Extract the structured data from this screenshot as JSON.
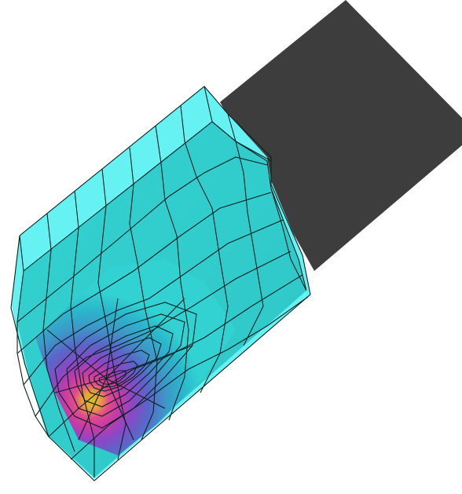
{
  "figure": {
    "background_color": "#ffffff",
    "rigid_block_color": "#3d3d3d",
    "face_colors": {
      "top": "#66f2f2",
      "side": "#33d3d3",
      "front_light": "#33d2d2",
      "front_mid": "#35bcbc"
    },
    "mesh_line_color": "#0b2020",
    "hotspot_gradient": [
      "#1fc7cc",
      "#3aa0c8",
      "#4a78c8",
      "#6a5cc8",
      "#9a45c4",
      "#c43aa8",
      "#e04a8c",
      "#e8a040",
      "#d8c020"
    ]
  }
}
